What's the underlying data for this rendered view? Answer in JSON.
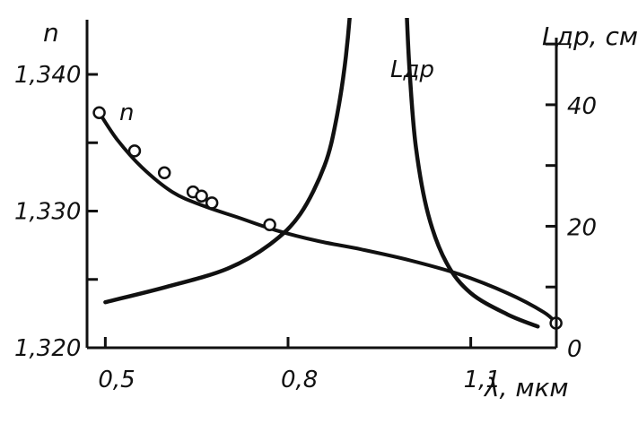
{
  "chart_data": {
    "type": "line",
    "title": "",
    "xlabel": "λ, мкм",
    "ylabel_left": "n",
    "ylabel_right": "Lдр, см",
    "x_ticks": [
      0.5,
      0.8,
      1.1
    ],
    "x_tick_labels": [
      "0,5",
      "0,8",
      "1,1"
    ],
    "xlim": [
      0.47,
      1.27
    ],
    "ylim_left": [
      1.32,
      1.344
    ],
    "y_left_ticks": [
      1.32,
      1.325,
      1.33,
      1.335,
      1.34
    ],
    "y_left_tick_labels": [
      "1,320",
      "",
      "1,330",
      "",
      "1,340"
    ],
    "ylim_right": [
      0,
      54
    ],
    "y_right_ticks": [
      0,
      10,
      20,
      30,
      40,
      50
    ],
    "y_right_tick_labels": [
      "0",
      "",
      "20",
      "",
      "40",
      ""
    ],
    "grid": false,
    "series": [
      {
        "name": "n",
        "axis": "left",
        "x": [
          0.49,
          0.52,
          0.56,
          0.61,
          0.66,
          0.72,
          0.78,
          0.85,
          0.92,
          1.0,
          1.08,
          1.16,
          1.22,
          1.24
        ],
        "y": [
          1.3372,
          1.3352,
          1.3332,
          1.3314,
          1.3304,
          1.3295,
          1.3286,
          1.3278,
          1.3272,
          1.3264,
          1.3254,
          1.324,
          1.3226,
          1.3218
        ],
        "markers": {
          "x": [
            0.49,
            0.548,
            0.597,
            0.644,
            0.658,
            0.675,
            0.77,
            1.24
          ],
          "y": [
            1.3372,
            1.3344,
            1.3328,
            1.3314,
            1.3311,
            1.3306,
            1.329,
            1.3218
          ]
        }
      },
      {
        "name": "Lдр",
        "axis": "right",
        "branches": [
          {
            "x": [
              0.5,
              0.6,
              0.7,
              0.77,
              0.82,
              0.86,
              0.88,
              0.895,
              0.905,
              0.91,
              0.913,
              0.914
            ],
            "y": [
              7.5,
              10,
              13,
              17,
              22,
              30,
              38,
              48,
              60,
              75,
              90,
              100
            ]
          },
          {
            "x": [
              0.985,
              0.987,
              0.99,
              0.995,
              1.0,
              1.01,
              1.03,
              1.06,
              1.1,
              1.16,
              1.21
            ],
            "y": [
              100,
              85,
              70,
              55,
              45,
              33,
              22,
              14,
              9,
              5.5,
              3.5
            ]
          }
        ]
      }
    ]
  }
}
